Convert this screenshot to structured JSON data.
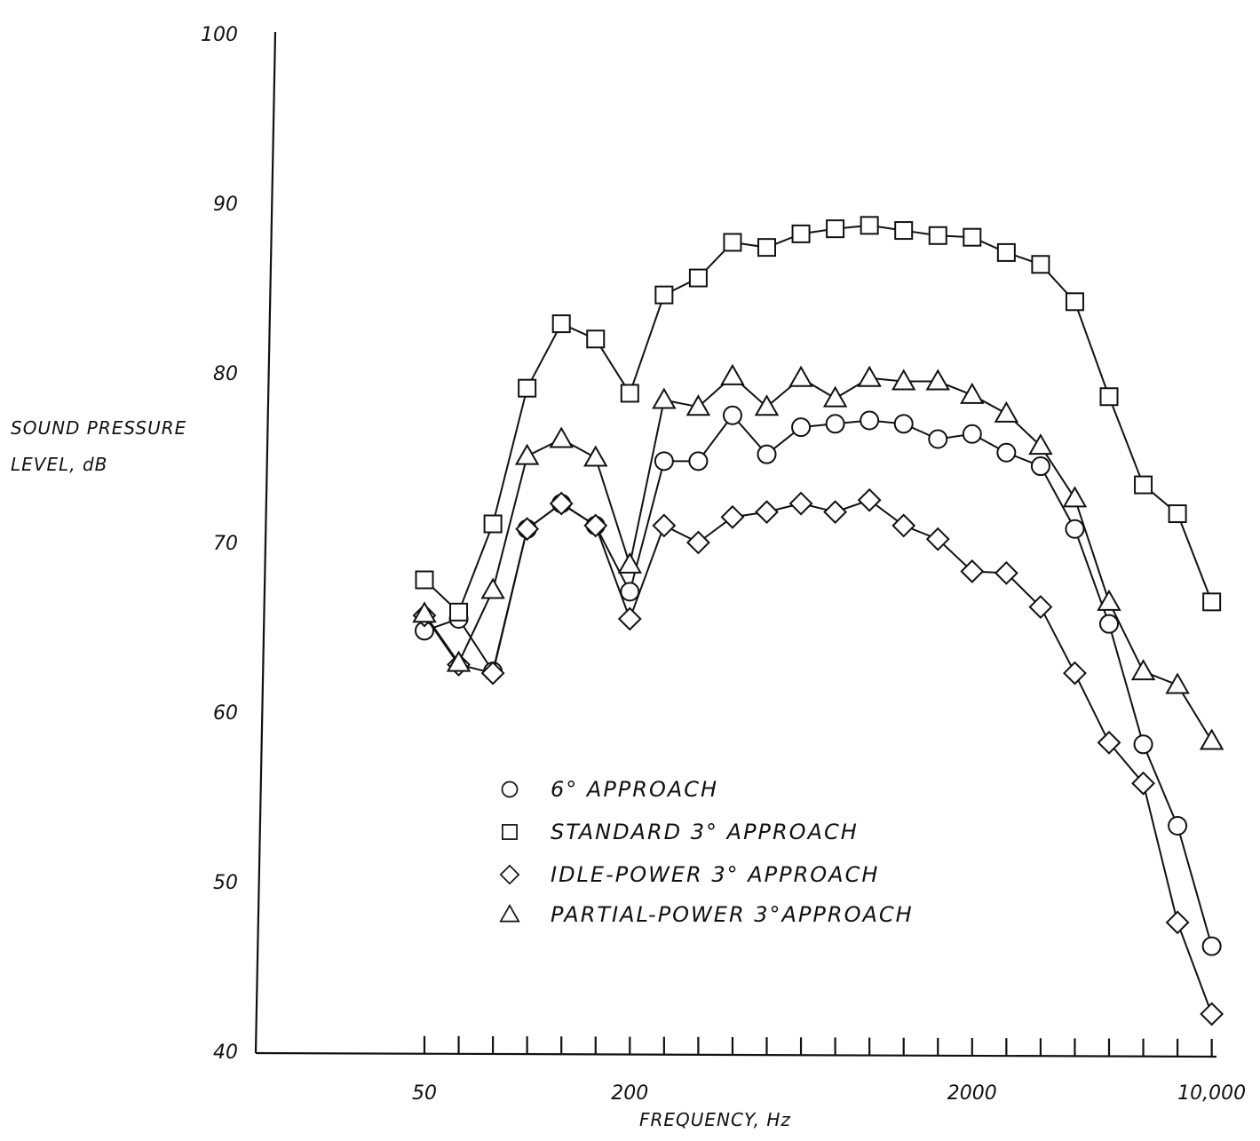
{
  "chart_data": {
    "type": "line",
    "title": "",
    "xlabel": "FREQUENCY, Hz",
    "ylabel_line1": "SOUND PRESSURE",
    "ylabel_line2": "LEVEL, dB",
    "x_scale": "log-third-octave",
    "ylim": [
      40,
      100
    ],
    "y_ticks": [
      "40",
      "50",
      "60",
      "70",
      "80",
      "90",
      "100"
    ],
    "x_tick_labels": [
      "50",
      "200",
      "2000",
      "10,000"
    ],
    "x": [
      50,
      63,
      80,
      100,
      125,
      160,
      200,
      250,
      315,
      400,
      500,
      630,
      800,
      1000,
      1250,
      1600,
      2000,
      2500,
      3150,
      4000,
      5000,
      6300,
      8000,
      10000
    ],
    "grid": false,
    "legend_position": "lower-center",
    "series": [
      {
        "name": "6° APPROACH",
        "marker": "circle",
        "values": [
          64.8,
          65.5,
          62.4,
          70.8,
          72.3,
          71.0,
          67.1,
          74.8,
          74.8,
          77.5,
          75.2,
          76.8,
          77.0,
          77.2,
          77.0,
          76.1,
          76.4,
          75.3,
          74.5,
          70.8,
          65.2,
          58.1,
          53.3,
          46.2
        ]
      },
      {
        "name": "STANDARD 3° APPROACH",
        "marker": "square",
        "values": [
          67.8,
          65.9,
          71.1,
          79.1,
          82.9,
          82.0,
          78.8,
          84.6,
          85.6,
          87.7,
          87.4,
          88.2,
          88.5,
          88.7,
          88.4,
          88.1,
          88.0,
          87.1,
          86.4,
          84.2,
          78.6,
          73.4,
          71.7,
          66.5
        ]
      },
      {
        "name": "IDLE-POWER 3° APPROACH",
        "marker": "diamond",
        "values": [
          65.7,
          62.8,
          62.3,
          70.8,
          72.3,
          71.0,
          65.5,
          71.0,
          70.0,
          71.5,
          71.8,
          72.3,
          71.8,
          72.5,
          71.0,
          70.2,
          68.3,
          68.2,
          66.2,
          62.3,
          58.2,
          55.8,
          47.6,
          42.2
        ]
      },
      {
        "name": "PARTIAL-POWER 3°APPROACH",
        "marker": "triangle",
        "values": [
          65.8,
          62.9,
          67.2,
          75.1,
          76.1,
          75.0,
          68.7,
          78.4,
          78.0,
          79.8,
          78.0,
          79.7,
          78.5,
          79.7,
          79.5,
          79.5,
          78.7,
          77.6,
          75.7,
          72.6,
          66.5,
          62.4,
          61.6,
          58.3
        ]
      }
    ]
  }
}
